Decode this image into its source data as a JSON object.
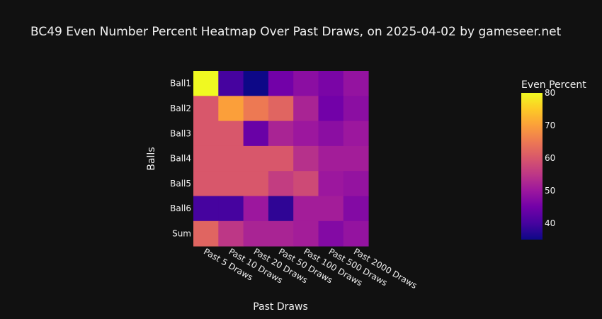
{
  "chart_data": {
    "type": "heatmap",
    "title": "BC49 Even Number Percent Heatmap Over Past Draws, on 2025-04-02 by gameseer.net",
    "xlabel": "Past Draws",
    "ylabel": "Balls",
    "x_categories": [
      "Past 5 Draws",
      "Past 10 Draws",
      "Past 20 Draws",
      "Past 50 Draws",
      "Past 100 Draws",
      "Past 500 Draws",
      "Past 2000 Draws"
    ],
    "y_categories": [
      "Ball1",
      "Ball2",
      "Ball3",
      "Ball4",
      "Ball5",
      "Ball6",
      "Sum"
    ],
    "values": [
      [
        80,
        40,
        35,
        45,
        48,
        46,
        49
      ],
      [
        60,
        70,
        65,
        62,
        52,
        45,
        48
      ],
      [
        60,
        60,
        44,
        52,
        50,
        48,
        50
      ],
      [
        60,
        60,
        60,
        60,
        54,
        51,
        51
      ],
      [
        60,
        60,
        60,
        56,
        58,
        50,
        49
      ],
      [
        40,
        40,
        50,
        38,
        51,
        51,
        47
      ],
      [
        62,
        55,
        52,
        52,
        51,
        47,
        49
      ]
    ],
    "colorbar": {
      "title": "Even Percent",
      "range": [
        35,
        80
      ],
      "ticks": [
        40,
        50,
        60,
        70,
        80
      ]
    },
    "colorscale": [
      "#0d0887",
      "#46039f",
      "#7201a8",
      "#9c179e",
      "#bd3786",
      "#d8576b",
      "#ed7953",
      "#fb9f3a",
      "#fdca26",
      "#f0f921"
    ]
  }
}
